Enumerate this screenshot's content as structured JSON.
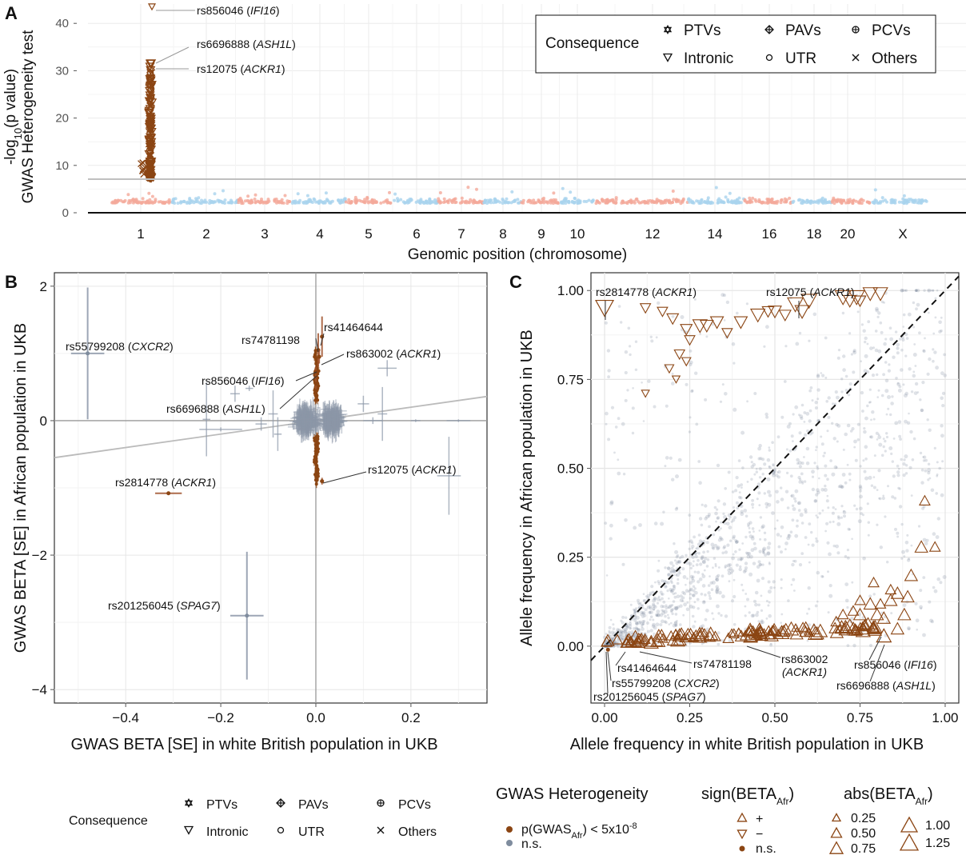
{
  "panels": {
    "a": "A",
    "b": "B",
    "c": "C"
  },
  "colors": {
    "significant": "#8B4513",
    "ns": "#7F8C9E",
    "chrom_odd": "#F4A99A",
    "chrom_even": "#A9D3EE",
    "threshold": "#BFBFBF"
  },
  "legend_icons": {
    "PTVs": "star-of-david-icon",
    "Intronic": "down-triangle-icon",
    "PAVs": "diamond-plus-icon",
    "UTR": "circle-icon",
    "PCVs": "circle-plus-icon",
    "Others": "cross-icon"
  },
  "chart_data": [
    {
      "panel": "A",
      "type": "scatter",
      "subtype": "manhattan",
      "xlabel": "Genomic position (chromosome)",
      "ylabel_line1_pre": "-log",
      "ylabel_line1_sub": "10",
      "ylabel_line1_post": "(p value)",
      "ylabel_line2": "GWAS Heterogeneity test",
      "ylim": [
        0,
        44
      ],
      "yticks": [
        0,
        10,
        20,
        30,
        40
      ],
      "yticklabels": [
        "0",
        "10",
        "20",
        "30",
        "40"
      ],
      "threshold": 7.3,
      "chromosome_ticks": [
        "1",
        "2",
        "3",
        "4",
        "5",
        "6",
        "7",
        "8",
        "9",
        "10",
        "12",
        "14",
        "16",
        "18",
        "20",
        "X"
      ],
      "legend": {
        "title": "Consequence",
        "entries": [
          "PTVs",
          "PAVs",
          "PCVs",
          "Intronic",
          "UTR",
          "Others"
        ]
      },
      "annotations": [
        {
          "pre": "rs856046 (",
          "gene": "IFI16",
          "post": ")",
          "y": 43.5
        },
        {
          "pre": "rs6696888 (",
          "gene": "ASH1L",
          "post": ")",
          "y": 32
        },
        {
          "pre": "rs12075 (",
          "gene": "ACKR1",
          "post": ")",
          "y": 31
        }
      ],
      "peak": {
        "chromosome": "1",
        "max_y": 43.5,
        "significant_range": [
          7.3,
          32
        ]
      }
    },
    {
      "panel": "B",
      "type": "scatter",
      "subtype": "errorbar-scatter",
      "xlabel": "GWAS BETA [SE] in white British population in UKB",
      "ylabel": "GWAS BETA [SE] in African population in UKB",
      "xlim": [
        -0.55,
        0.36
      ],
      "ylim": [
        -4.2,
        2.2
      ],
      "xticks": [
        -0.4,
        -0.2,
        0.0,
        0.2
      ],
      "xticklabels": [
        "−0.4",
        "−0.2",
        "0.0",
        "0.2"
      ],
      "yticks": [
        -4,
        -2,
        0,
        2
      ],
      "yticklabels": [
        "−4",
        "−2",
        "0",
        "2"
      ],
      "regression_line": {
        "x": [
          -0.55,
          0.36
        ],
        "y": [
          -0.55,
          0.36
        ]
      },
      "labeled_points": [
        {
          "pre": "rs55799208 (",
          "gene": "CXCR2",
          "post": ")",
          "x": -0.48,
          "y": 1.0,
          "se_x": 0.035,
          "se_y": 0.98,
          "sig": false
        },
        {
          "pre": "rs2814778 (",
          "gene": "ACKR1",
          "post": ")",
          "x": -0.31,
          "y": -1.08,
          "se_x": 0.028,
          "se_y": 0.02,
          "sig": true
        },
        {
          "pre": "rs201256045 (",
          "gene": "SPAG7",
          "post": ")",
          "x": -0.145,
          "y": -2.9,
          "se_x": 0.035,
          "se_y": 0.95,
          "sig": false
        },
        {
          "pre": "rs74781198",
          "gene": "",
          "post": "",
          "x": 0.005,
          "y": 1.05,
          "se_x": 0.004,
          "se_y": 0.25,
          "sig": true
        },
        {
          "pre": "rs41464644",
          "gene": "",
          "post": "",
          "x": 0.013,
          "y": 1.25,
          "se_x": 0.004,
          "se_y": 0.3,
          "sig": true
        },
        {
          "pre": "rs863002 (",
          "gene": "ACKR1",
          "post": ")",
          "x": 0.007,
          "y": 0.95,
          "se_x": 0.004,
          "se_y": 0.1,
          "sig": true
        },
        {
          "pre": "rs856046 (",
          "gene": "IFI16",
          "post": ")",
          "x": 0.0,
          "y": 0.72,
          "se_x": 0.004,
          "se_y": 0.08,
          "sig": true
        },
        {
          "pre": "rs6696888 (",
          "gene": "ASH1L",
          "post": ")",
          "x": 0.0,
          "y": 0.55,
          "se_x": 0.004,
          "se_y": 0.08,
          "sig": true
        },
        {
          "pre": "rs12075 (",
          "gene": "ACKR1",
          "post": ")",
          "x": 0.013,
          "y": -0.9,
          "se_x": 0.004,
          "se_y": 0.05,
          "sig": true
        }
      ]
    },
    {
      "panel": "C",
      "type": "scatter",
      "xlabel": "Allele frequency in white British population in UKB",
      "ylabel": "Allele frequency in African population in UKB",
      "xlim": [
        -0.04,
        1.04
      ],
      "ylim": [
        -0.16,
        1.05
      ],
      "xticks": [
        0.0,
        0.25,
        0.5,
        0.75,
        1.0
      ],
      "xticklabels": [
        "0.00",
        "0.25",
        "0.50",
        "0.75",
        "1.00"
      ],
      "yticks": [
        0.0,
        0.25,
        0.5,
        0.75,
        1.0
      ],
      "yticklabels": [
        "0.00",
        "0.25",
        "0.50",
        "0.75",
        "1.00"
      ],
      "diagonal": "y = x (dashed)",
      "labeled_points": [
        {
          "pre": "rs2814778 (",
          "gene": "ACKR1",
          "post": ")",
          "x": 0.0,
          "y": 0.95,
          "sign": "-",
          "abs": 1.08
        },
        {
          "pre": "rs12075 (",
          "gene": "ACKR1",
          "post": ")",
          "x": 0.58,
          "y": 0.98,
          "sign": "-",
          "abs": 0.9
        },
        {
          "pre": "rs41464644",
          "gene": "",
          "post": "",
          "x": 0.02,
          "y": 0.0,
          "sign": "+",
          "abs": 0.5
        },
        {
          "pre": "rs74781198",
          "gene": "",
          "post": "",
          "x": 0.05,
          "y": 0.0,
          "sign": "+",
          "abs": 0.5
        },
        {
          "pre": "rs55799208 (",
          "gene": "CXCR2",
          "post": ")",
          "x": 0.01,
          "y": -0.01,
          "sign": "n.s.",
          "abs": 1.0
        },
        {
          "pre": "rs201256045 (",
          "gene": "SPAG7",
          "post": ")",
          "x": 0.01,
          "y": -0.02,
          "sign": "n.s.",
          "abs": 2.9
        },
        {
          "pre": "rs863002",
          "gene": "",
          "post": "",
          "line2": "(ACKR1)",
          "x": 0.43,
          "y": 0.03,
          "sign": "+",
          "abs": 0.95
        },
        {
          "pre": "rs856046 (",
          "gene": "IFI16",
          "post": ")",
          "x": 0.82,
          "y": 0.1,
          "sign": "+",
          "abs": 0.72
        },
        {
          "pre": "rs6696888 (",
          "gene": "ASH1L",
          "post": ")",
          "x": 0.82,
          "y": 0.03,
          "sign": "+",
          "abs": 0.55
        }
      ]
    }
  ],
  "bottom_legend": {
    "consequence_title": "Consequence",
    "consequence_entries": [
      "PTVs",
      "PAVs",
      "PCVs",
      "Intronic",
      "UTR",
      "Others"
    ],
    "het_title": "GWAS Heterogeneity",
    "het_sig_pre": "p(GWAS",
    "het_sig_sub": "Afr",
    "het_sig_post": ") < 5x10",
    "het_sig_sup": "-8",
    "het_ns": "n.s.",
    "sign_title_pre": "sign(BETA",
    "sign_title_sub": "Afr",
    "sign_title_post": ")",
    "sign_entries": [
      "+",
      "−",
      "n.s."
    ],
    "abs_title_pre": "abs(BETA",
    "abs_title_sub": "Afr",
    "abs_title_post": ")",
    "abs_entries": [
      "0.25",
      "0.50",
      "0.75",
      "1.00",
      "1.25"
    ]
  }
}
